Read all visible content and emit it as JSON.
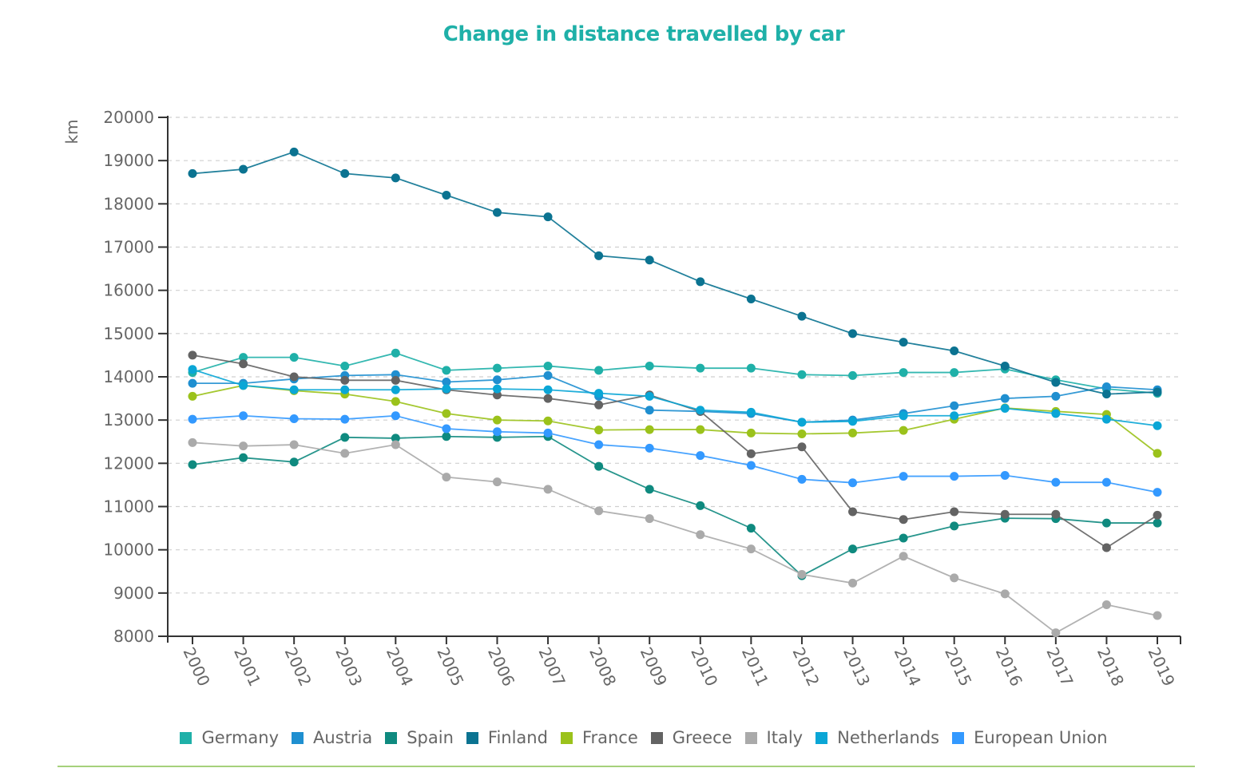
{
  "chart_data": {
    "type": "line",
    "title": "Change in distance travelled by car",
    "xlabel": "",
    "ylabel": "km",
    "ylim": [
      8000,
      20000
    ],
    "yticks": [
      "20000",
      "19000",
      "18000",
      "17000",
      "16000",
      "15000",
      "14000",
      "13000",
      "12000",
      "11000",
      "10000",
      "9000",
      "8000"
    ],
    "ytick_values": [
      20000,
      19000,
      18000,
      17000,
      16000,
      15000,
      14000,
      13000,
      12000,
      11000,
      10000,
      9000,
      8000
    ],
    "grid": "horizontal-dashed",
    "legend_position": "bottom",
    "categories": [
      "2000",
      "2001",
      "2002",
      "2003",
      "2004",
      "2005",
      "2006",
      "2007",
      "2008",
      "2009",
      "2010",
      "2011",
      "2012",
      "2013",
      "2014",
      "2015",
      "2016",
      "2017",
      "2018",
      "2019"
    ],
    "series": [
      {
        "name": "Germany",
        "color": "#1fb0a8",
        "values": [
          14100,
          14450,
          14450,
          14250,
          14550,
          14150,
          14200,
          14250,
          14150,
          14250,
          14200,
          14200,
          14050,
          14030,
          14100,
          14100,
          14180,
          13930,
          13720,
          13620
        ]
      },
      {
        "name": "Austria",
        "color": "#1f8fd0",
        "values": [
          13850,
          13850,
          13950,
          14030,
          14050,
          13880,
          13930,
          14030,
          13550,
          13230,
          13200,
          13150,
          12950,
          13000,
          13150,
          13330,
          13500,
          13550,
          13770,
          13700
        ]
      },
      {
        "name": "Spain",
        "color": "#0f8a7f",
        "values": [
          11970,
          12130,
          12030,
          12600,
          12580,
          12620,
          12600,
          12620,
          11930,
          11400,
          11020,
          10500,
          9400,
          10020,
          10270,
          10550,
          10730,
          10720,
          10620,
          10620
        ]
      },
      {
        "name": "Finland",
        "color": "#0b7391",
        "values": [
          18700,
          18800,
          19200,
          18700,
          18600,
          18200,
          17800,
          17700,
          16800,
          16700,
          16200,
          15800,
          15400,
          15000,
          14800,
          14600,
          14250,
          13870,
          13600,
          13650
        ]
      },
      {
        "name": "France",
        "color": "#9bc21b",
        "values": [
          13550,
          13800,
          13680,
          13600,
          13430,
          13150,
          13000,
          12980,
          12770,
          12780,
          12780,
          12700,
          12680,
          12700,
          12760,
          13020,
          13280,
          13200,
          13130,
          12230
        ]
      },
      {
        "name": "Greece",
        "color": "#636363",
        "values": [
          14500,
          14300,
          14000,
          13920,
          13920,
          13700,
          13580,
          13500,
          13350,
          13580,
          13200,
          12220,
          12380,
          10880,
          10700,
          10880,
          10820,
          10820,
          10050,
          10800
        ]
      },
      {
        "name": "Italy",
        "color": "#aaaaaa",
        "values": [
          12480,
          12400,
          12430,
          12230,
          12430,
          11680,
          11570,
          11400,
          10900,
          10720,
          10350,
          10020,
          9430,
          9230,
          9850,
          9350,
          8980,
          8080,
          8730,
          8480
        ]
      },
      {
        "name": "Netherlands",
        "color": "#0aa6d6",
        "values": [
          14170,
          13800,
          13700,
          13700,
          13700,
          13720,
          13720,
          13700,
          13620,
          13550,
          13230,
          13180,
          12950,
          12970,
          13100,
          13100,
          13270,
          13150,
          13020,
          12870
        ]
      },
      {
        "name": "European Union",
        "color": "#3399ff",
        "values": [
          13020,
          13100,
          13030,
          13020,
          13100,
          12800,
          12730,
          12700,
          12430,
          12350,
          12180,
          11950,
          11630,
          11550,
          11700,
          11700,
          11720,
          11560,
          11560,
          11330
        ]
      }
    ]
  }
}
